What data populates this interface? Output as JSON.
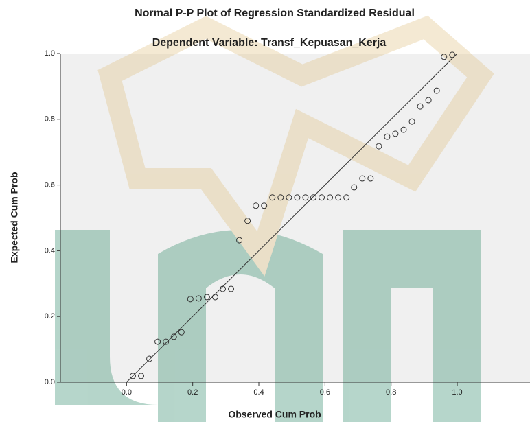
{
  "chart_data": {
    "type": "scatter",
    "title": "Normal P-P Plot of Regression Standardized Residual",
    "subtitle": "Dependent Variable: Transf_Kepuasan_Kerja",
    "x_label": "Observed Cum Prob",
    "y_label": "Expected Cum Prob",
    "x": [
      0.019,
      0.044,
      0.069,
      0.094,
      0.119,
      0.143,
      0.166,
      0.193,
      0.218,
      0.243,
      0.268,
      0.291,
      0.316,
      0.341,
      0.366,
      0.391,
      0.416,
      0.441,
      0.466,
      0.491,
      0.516,
      0.541,
      0.565,
      0.59,
      0.615,
      0.64,
      0.665,
      0.688,
      0.713,
      0.738,
      0.763,
      0.788,
      0.813,
      0.838,
      0.863,
      0.888,
      0.913,
      0.938,
      0.96,
      0.985
    ],
    "values": [
      0.019,
      0.019,
      0.071,
      0.123,
      0.123,
      0.138,
      0.152,
      0.253,
      0.255,
      0.259,
      0.259,
      0.284,
      0.284,
      0.432,
      0.491,
      0.537,
      0.537,
      0.562,
      0.562,
      0.562,
      0.562,
      0.562,
      0.562,
      0.562,
      0.562,
      0.562,
      0.562,
      0.593,
      0.62,
      0.62,
      0.718,
      0.747,
      0.756,
      0.768,
      0.793,
      0.839,
      0.858,
      0.887,
      0.99,
      0.996
    ],
    "color": "#333333",
    "diagonal": true,
    "xlim": [
      -0.2,
      1.22
    ],
    "ylim": [
      0,
      1
    ],
    "xticks": [
      {
        "value": 0,
        "label": "0.0"
      },
      0.2,
      0.4,
      0.6,
      0.8,
      {
        "value": 1,
        "label": "1.0"
      }
    ],
    "yticks": [
      {
        "value": 0,
        "label": "0.0"
      },
      0.2,
      0.4,
      0.6,
      0.8,
      {
        "value": 1,
        "label": "1.0"
      }
    ]
  }
}
